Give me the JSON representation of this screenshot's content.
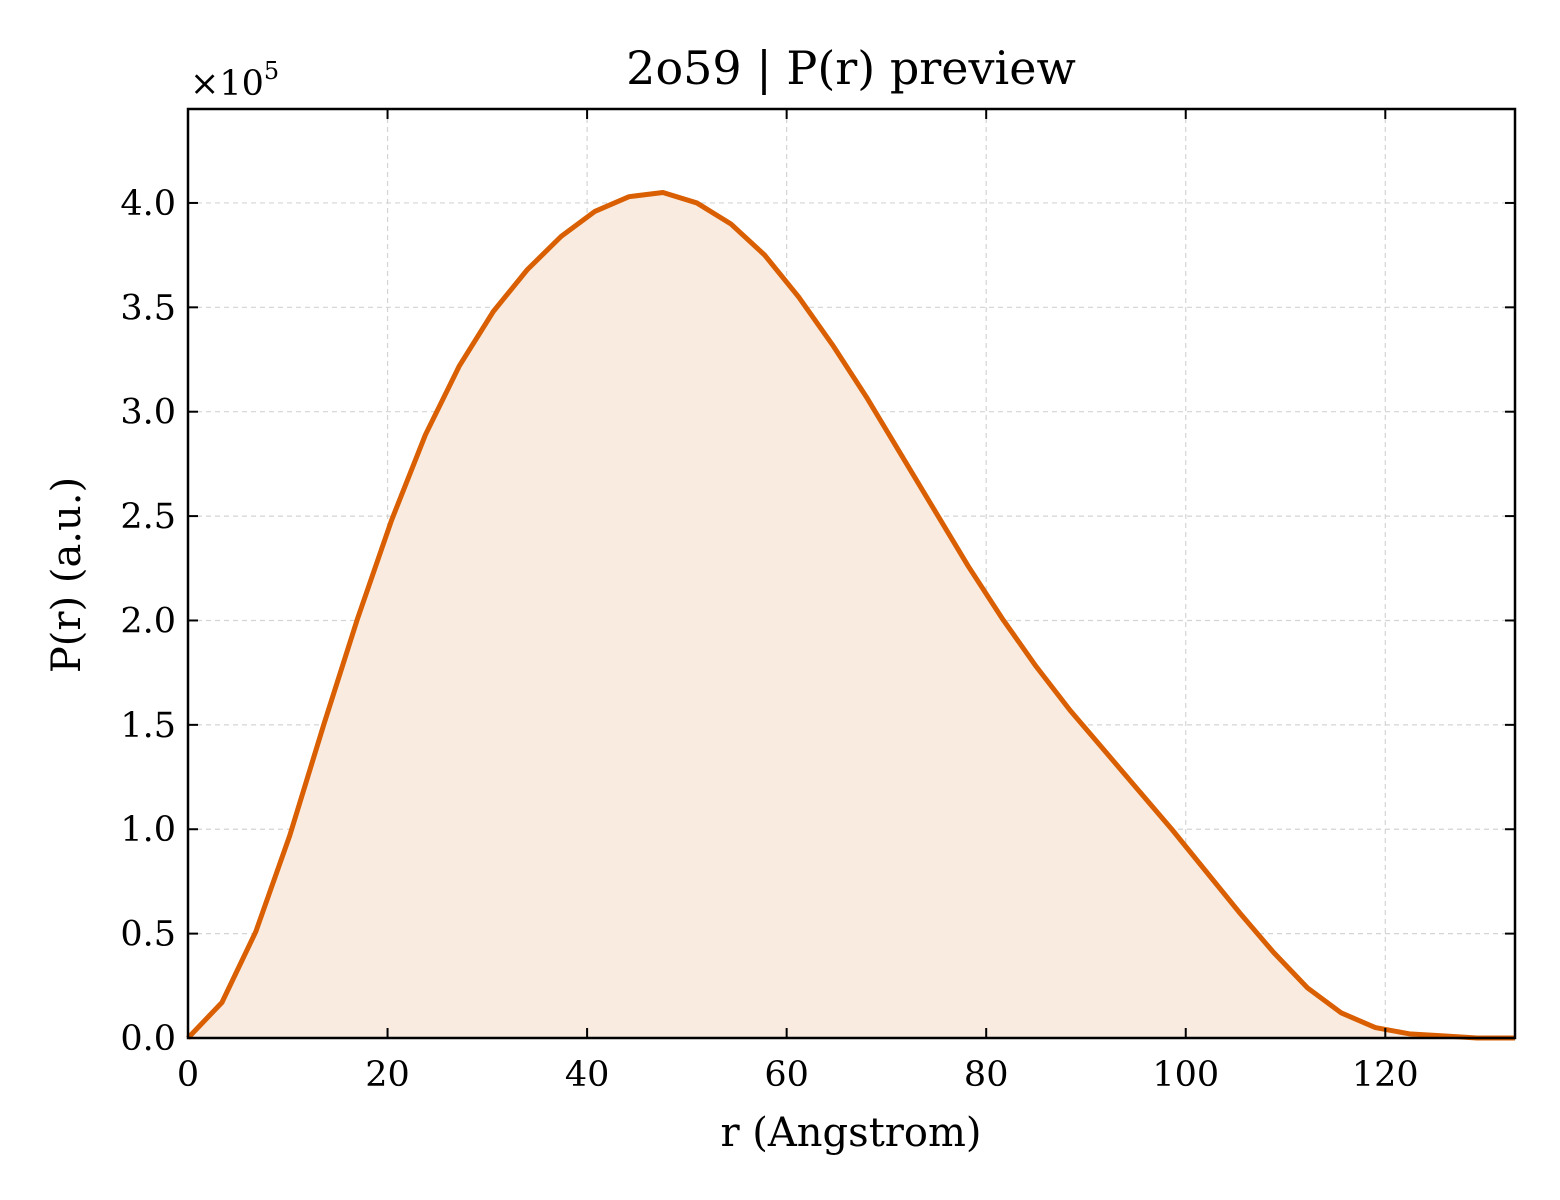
{
  "chart_data": {
    "type": "area",
    "title": "2o59 | P(r) preview",
    "xlabel": "r (Angstrom)",
    "ylabel": "P(r) (a.u.)",
    "y_multiplier_label": "×10",
    "y_multiplier_exponent": "5",
    "xlim": [
      0,
      133
    ],
    "ylim": [
      0,
      4.45
    ],
    "xticks": [
      0,
      20,
      40,
      60,
      80,
      100,
      120
    ],
    "xtick_labels": [
      "0",
      "20",
      "40",
      "60",
      "80",
      "100",
      "120"
    ],
    "yticks": [
      0.0,
      0.5,
      1.0,
      1.5,
      2.0,
      2.5,
      3.0,
      3.5,
      4.0
    ],
    "ytick_labels": [
      "0.0",
      "0.5",
      "1.0",
      "1.5",
      "2.0",
      "2.5",
      "3.0",
      "3.5",
      "4.0"
    ],
    "grid": true,
    "line_color": "#d95f02",
    "fill_color": "#f9ebe0",
    "x": [
      0,
      3.4,
      6.8,
      10.2,
      13.6,
      17.0,
      20.4,
      23.8,
      27.2,
      30.6,
      34.0,
      37.4,
      40.8,
      44.2,
      47.6,
      51.0,
      54.4,
      57.8,
      61.2,
      64.6,
      68.0,
      71.4,
      74.8,
      78.2,
      81.6,
      85.0,
      88.4,
      91.8,
      95.2,
      98.6,
      102.0,
      105.4,
      108.8,
      112.2,
      115.6,
      119.0,
      122.4,
      125.8,
      129.2,
      133.0
    ],
    "y": [
      0.0,
      0.17,
      0.51,
      0.97,
      1.5,
      2.01,
      2.48,
      2.89,
      3.22,
      3.48,
      3.68,
      3.84,
      3.96,
      4.03,
      4.05,
      4.0,
      3.9,
      3.75,
      3.55,
      3.32,
      3.07,
      2.8,
      2.53,
      2.26,
      2.01,
      1.78,
      1.57,
      1.38,
      1.19,
      1.0,
      0.8,
      0.6,
      0.41,
      0.24,
      0.12,
      0.05,
      0.02,
      0.01,
      0.0,
      0.0
    ]
  }
}
